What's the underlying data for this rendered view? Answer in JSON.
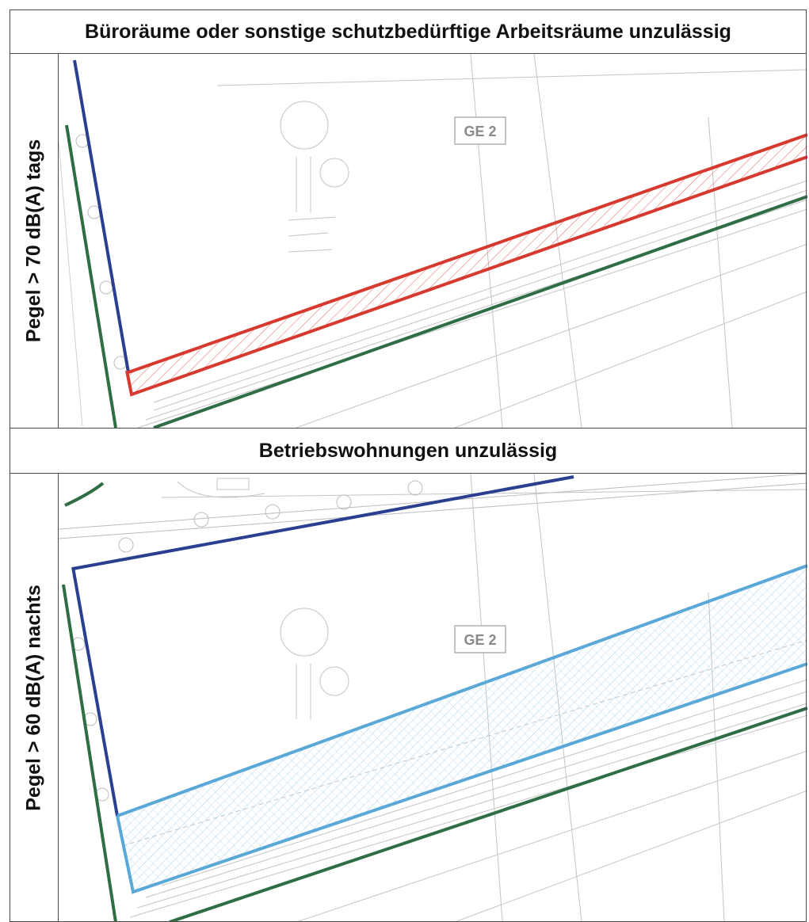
{
  "panels": [
    {
      "title": "Büroräume oder sonstige schutzbedürftige Arbeitsräume unzulässig",
      "side_label": "Pegel > 70 dB(A) tags",
      "zone_label": "GE 2",
      "zone_color": "#d63a2f"
    },
    {
      "title": "Betriebswohnungen unzulässig",
      "side_label": "Pegel > 60 dB(A) nachts",
      "zone_label": "GE 2",
      "zone_color": "#5aa8d8"
    }
  ],
  "colors": {
    "boundary_blue": "#2a3f8f",
    "boundary_green": "#2f6e45",
    "plan_lines": "#b8b8b8"
  }
}
